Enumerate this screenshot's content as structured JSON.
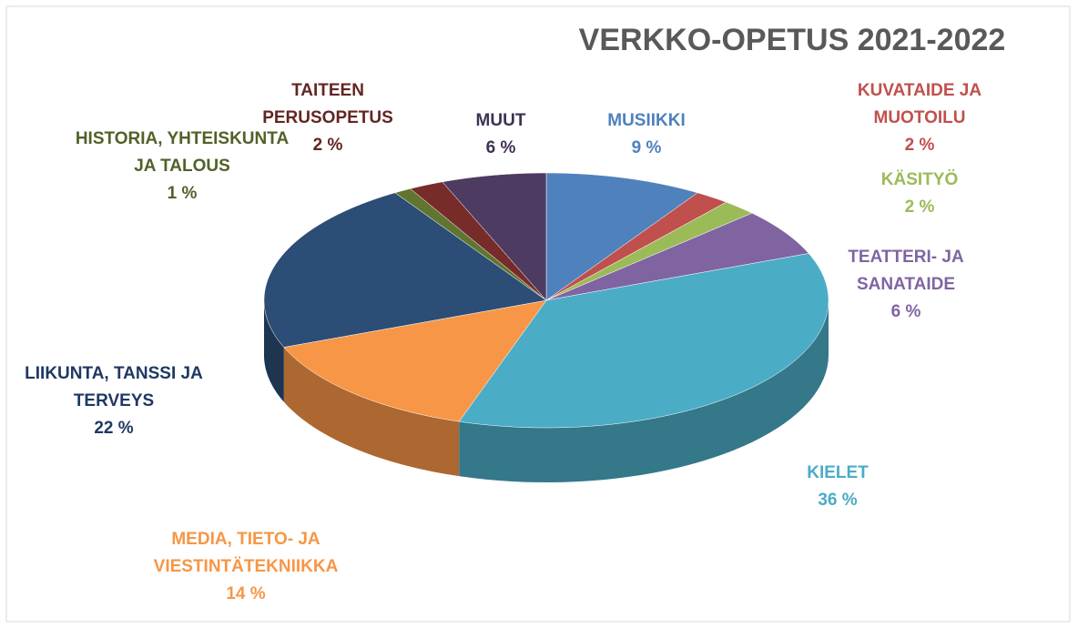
{
  "chart_data": {
    "type": "pie",
    "title": "VERKKO-OPETUS 2021-2022",
    "categories": [
      "MUSIIKKI",
      "KUVATAIDE JA MUOTOILU",
      "KÄSITYÖ",
      "TEATTERI- JA SANATAIDE",
      "KIELET",
      "MEDIA, TIETO- JA VIESTINTÄTEKNIIKKA",
      "LIIKUNTA, TANSSI JA TERVEYS",
      "HISTORIA, YHTEISKUNTA JA TALOUS",
      "TAITEEN PERUSOPETUS",
      "MUUT"
    ],
    "values": [
      9,
      2,
      2,
      6,
      36,
      14,
      22,
      1,
      2,
      6
    ],
    "value_labels": [
      "9 %",
      "2 %",
      "2 %",
      "6 %",
      "36 %",
      "14 %",
      "22 %",
      "1 %",
      "2 %",
      "6 %"
    ],
    "colors": [
      "#4f81bd",
      "#c0504d",
      "#9bbb59",
      "#8064a2",
      "#4bacc6",
      "#f79646",
      "#2c4d75",
      "#5f7530",
      "#772c2a",
      "#4d3b62"
    ]
  }
}
